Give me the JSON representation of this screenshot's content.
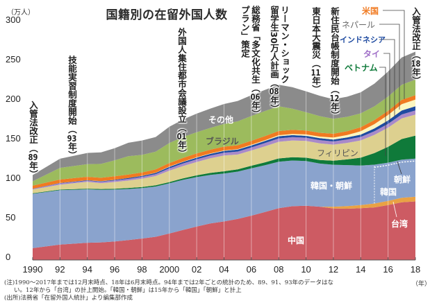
{
  "title": "国籍別の在留外国人数",
  "paren_open": "（",
  "year_suffix": "年）",
  "events": [
    {
      "lines": [
        "入管法改正"
      ],
      "year": "89"
    },
    {
      "lines": [
        "技能実習制度開始"
      ],
      "year": "93"
    },
    {
      "lines": [
        "外国人集住都市会議設立"
      ],
      "year": "01"
    },
    {
      "lines": [
        "総務省「多文化共生",
        "プラン」策定"
      ],
      "year": "06"
    },
    {
      "lines": [
        "リーマン・ショック",
        "留学生30万人計画"
      ],
      "year": "08"
    },
    {
      "lines": [
        "東日本大震災"
      ],
      "year": "11"
    },
    {
      "lines": [
        "新住民台帳制度開始"
      ],
      "year": "12"
    },
    {
      "lines": [
        "入管法改正"
      ],
      "year": "18"
    }
  ],
  "notes": [
    "(注)1990～2017年までは12月末時点、18年は6月末時点。94年までは2年ごとの統計のため、89、91、93年のデータはな",
    "い。12年から「台湾」の計上開始。「韓国・朝鮮」は15年から「韓国」「朝鮮」と計上",
    "(出所)法務省「在留外国人統計」より編集部作成"
  ],
  "chart_data": {
    "type": "area",
    "stacked": true,
    "title": "国籍別の在留外国人数",
    "ylabel": "（万人）",
    "xlabel": "（年）",
    "ylim": [
      0,
      300
    ],
    "yticks": [
      "0",
      "50",
      "100",
      "150",
      "200",
      "250",
      "300"
    ],
    "xtick_labels": [
      "1990",
      "92",
      "94",
      "96",
      "98",
      "2000",
      "02",
      "04",
      "06",
      "08",
      "10",
      "12",
      "14",
      "16",
      "18"
    ],
    "x": [
      1990,
      1992,
      1994,
      1995,
      1996,
      1997,
      1998,
      1999,
      2000,
      2001,
      2002,
      2003,
      2004,
      2005,
      2006,
      2007,
      2008,
      2009,
      2010,
      2011,
      2012,
      2013,
      2014,
      2015,
      2016,
      2017,
      2018
    ],
    "series": [
      {
        "name": "中国",
        "color": "#cd5b63",
        "values": [
          15.0,
          19.5,
          21.8,
          22.3,
          23.4,
          25.3,
          27.2,
          29.4,
          33.5,
          38.1,
          42.4,
          46.2,
          48.8,
          51.9,
          56.1,
          60.7,
          65.5,
          68.1,
          68.7,
          67.5,
          65.3,
          64.9,
          65.5,
          66.6,
          69.5,
          73.0,
          74.1
        ]
      },
      {
        "name": "台湾",
        "color": "#e9a244",
        "values": [
          null,
          null,
          null,
          null,
          null,
          null,
          null,
          null,
          null,
          null,
          null,
          null,
          null,
          null,
          null,
          null,
          null,
          null,
          null,
          null,
          2.2,
          3.3,
          4.0,
          4.9,
          5.2,
          5.7,
          6.0
        ]
      },
      {
        "name": "韓国・朝鮮",
        "label_after_2015": "韓国",
        "color": "#8aa3cd",
        "values": [
          68.8,
          68.8,
          67.6,
          66.6,
          65.7,
          64.5,
          63.8,
          63.6,
          63.5,
          63.3,
          62.5,
          61.4,
          60.7,
          59.9,
          59.9,
          59.3,
          58.9,
          57.8,
          56.6,
          54.5,
          53.0,
          51.9,
          50.1,
          45.7,
          45.3,
          45.1,
          45.2
        ]
      },
      {
        "name": "朝鮮",
        "color": "#8aa3cd",
        "values": [
          null,
          null,
          null,
          null,
          null,
          null,
          null,
          null,
          null,
          null,
          null,
          null,
          null,
          null,
          null,
          null,
          null,
          null,
          null,
          null,
          null,
          null,
          null,
          3.4,
          3.2,
          3.1,
          3.0
        ]
      },
      {
        "name": "ベトナム",
        "color": "#0f7a3a",
        "values": [
          0.6,
          0.8,
          0.9,
          0.9,
          1.1,
          1.3,
          1.4,
          1.6,
          1.6,
          1.9,
          2.2,
          2.6,
          2.8,
          2.9,
          3.3,
          3.6,
          4.1,
          4.1,
          4.2,
          4.5,
          5.2,
          7.2,
          9.9,
          14.7,
          20.0,
          26.2,
          29.1
        ]
      },
      {
        "name": "フィリピン",
        "color": "#ddd08f",
        "values": [
          4.9,
          6.2,
          8.6,
          7.4,
          8.5,
          9.4,
          10.5,
          11.6,
          14.5,
          15.6,
          16.9,
          18.5,
          19.9,
          18.7,
          19.3,
          20.3,
          21.1,
          21.2,
          21.1,
          21.0,
          20.3,
          20.9,
          21.8,
          23.0,
          24.3,
          26.0,
          26.6
        ]
      },
      {
        "name": "タイ",
        "color": "#a98ac9",
        "values": [
          0.6,
          1.6,
          1.4,
          1.7,
          1.9,
          2.1,
          2.3,
          2.5,
          2.9,
          3.2,
          3.4,
          3.4,
          3.6,
          3.8,
          3.9,
          4.1,
          4.3,
          4.3,
          4.1,
          4.2,
          4.0,
          4.2,
          4.4,
          4.6,
          4.8,
          5.0,
          5.2
        ]
      },
      {
        "name": "インドネシア",
        "color": "#1f4ba1",
        "values": [
          0.3,
          0.5,
          0.6,
          0.7,
          0.8,
          1.1,
          1.2,
          1.5,
          1.9,
          2.0,
          2.1,
          2.2,
          2.3,
          2.5,
          2.5,
          2.6,
          2.7,
          2.5,
          2.4,
          2.4,
          2.5,
          2.6,
          3.0,
          3.5,
          4.3,
          5.0,
          5.3
        ]
      },
      {
        "name": "ネパール",
        "color": "#fcf6c0",
        "values": [
          0.0,
          0.1,
          0.1,
          0.1,
          0.1,
          0.1,
          0.2,
          0.2,
          0.4,
          0.4,
          0.5,
          0.5,
          0.5,
          0.6,
          0.8,
          1.0,
          1.3,
          1.5,
          1.8,
          2.0,
          2.4,
          3.1,
          4.2,
          5.5,
          6.8,
          8.0,
          8.5
        ]
      },
      {
        "name": "米国",
        "color": "#f07a21",
        "values": [
          3.8,
          4.3,
          4.3,
          4.3,
          4.4,
          4.3,
          4.2,
          4.3,
          4.4,
          4.6,
          4.8,
          4.8,
          4.8,
          4.9,
          5.1,
          5.2,
          5.3,
          5.2,
          5.0,
          4.9,
          4.8,
          4.9,
          5.1,
          5.2,
          5.3,
          5.5,
          5.6
        ]
      },
      {
        "name": "ブラジル",
        "color": "#9cbb5d",
        "values": [
          5.6,
          14.8,
          15.9,
          17.6,
          20.2,
          23.3,
          22.2,
          22.4,
          25.4,
          26.6,
          26.8,
          27.5,
          28.7,
          30.2,
          31.3,
          31.7,
          31.3,
          26.7,
          23.0,
          21.0,
          19.1,
          18.1,
          17.5,
          17.3,
          18.0,
          19.1,
          19.7
        ]
      },
      {
        "name": "その他",
        "color": "#8b8b8b",
        "values": [
          7.9,
          11.6,
          14.2,
          14.6,
          15.4,
          16.9,
          18.2,
          18.5,
          20.5,
          22.1,
          23.6,
          24.5,
          25.3,
          25.8,
          26.3,
          26.8,
          27.2,
          27.2,
          26.5,
          25.8,
          24.6,
          25.5,
          26.7,
          28.8,
          31.6,
          34.5,
          35.3
        ]
      }
    ],
    "labels": {
      "china": "中国",
      "taiwan": "台湾",
      "korea_all": "韓国・朝鮮",
      "korea": "韓国",
      "north_korea": "朝鮮",
      "vietnam": "ベトナム",
      "philippines": "フィリピン",
      "thailand": "タイ",
      "indonesia": "インドネシア",
      "nepal": "ネパール",
      "usa": "米国",
      "brazil": "ブラジル",
      "other": "その他"
    },
    "grid": false,
    "legend": "right (callouts)"
  }
}
